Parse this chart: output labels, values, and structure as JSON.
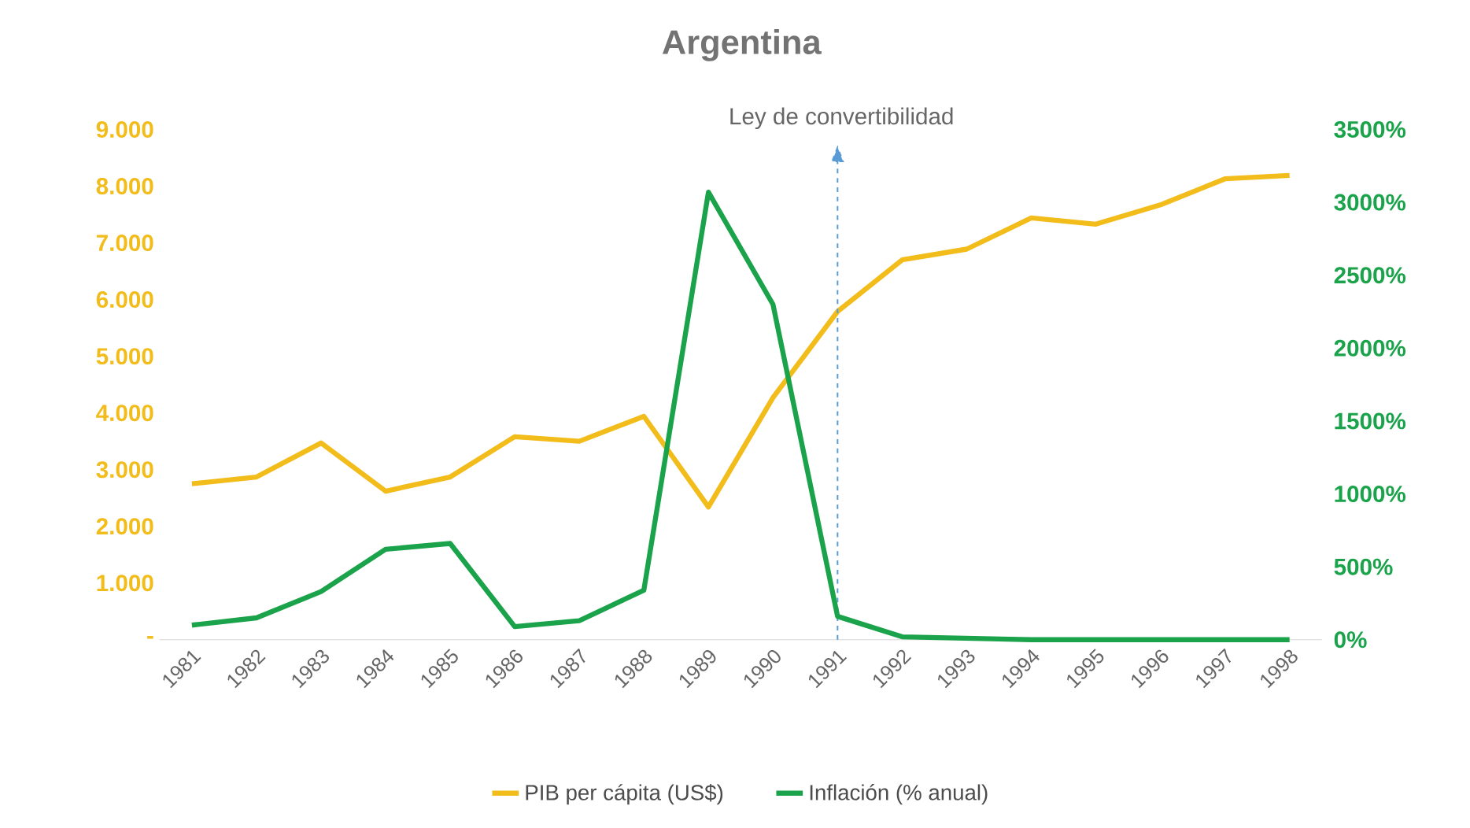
{
  "chart_data": {
    "type": "line",
    "title": "Argentina",
    "categories": [
      "1981",
      "1982",
      "1983",
      "1984",
      "1985",
      "1986",
      "1987",
      "1988",
      "1989",
      "1990",
      "1991",
      "1992",
      "1993",
      "1994",
      "1995",
      "1996",
      "1997",
      "1998"
    ],
    "series": [
      {
        "name": "PIB per cápita (US$)",
        "color": "#f2bc1b",
        "values": [
          2750,
          2870,
          3470,
          2620,
          2870,
          3580,
          3500,
          3940,
          2340,
          4270,
          5790,
          6700,
          6890,
          7440,
          7330,
          7670,
          8130,
          8190
        ]
      },
      {
        "name": "Inflación (% anual)",
        "color": "#1aa34a",
        "axis": "y2",
        "values": [
          100,
          150,
          330,
          620,
          660,
          90,
          130,
          340,
          3070,
          2300,
          160,
          20,
          10,
          0,
          0,
          0,
          0,
          0
        ]
      }
    ],
    "ylim": [
      0,
      9000
    ],
    "yticks": [
      {
        "value": 0,
        "label": "-"
      },
      {
        "value": 1000,
        "label": "1.000"
      },
      {
        "value": 2000,
        "label": "2.000"
      },
      {
        "value": 3000,
        "label": "3.000"
      },
      {
        "value": 4000,
        "label": "4.000"
      },
      {
        "value": 5000,
        "label": "5.000"
      },
      {
        "value": 6000,
        "label": "6.000"
      },
      {
        "value": 7000,
        "label": "7.000"
      },
      {
        "value": 8000,
        "label": "8.000"
      },
      {
        "value": 9000,
        "label": "9.000"
      }
    ],
    "y2lim": [
      0,
      3500
    ],
    "y2ticks": [
      {
        "value": 0,
        "label": "0%"
      },
      {
        "value": 500,
        "label": "500%"
      },
      {
        "value": 1000,
        "label": "1000%"
      },
      {
        "value": 1500,
        "label": "1500%"
      },
      {
        "value": 2000,
        "label": "2000%"
      },
      {
        "value": 2500,
        "label": "2500%"
      },
      {
        "value": 3000,
        "label": "3000%"
      },
      {
        "value": 3500,
        "label": "3500%"
      }
    ],
    "ref_lines": [
      {
        "axis": "x",
        "value": "1991",
        "label": "Ley de convertibilidad",
        "color": "#5b9bd5",
        "line_style": "dashed"
      }
    ],
    "legend": "bottom",
    "grid": false,
    "marker": "none",
    "line_style": "solid"
  }
}
